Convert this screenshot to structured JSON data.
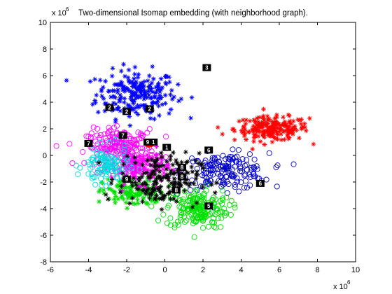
{
  "chart_data": {
    "type": "scatter",
    "title": "Two-dimensional Isomap embedding (with neighborhood graph).",
    "xlabel": "",
    "ylabel": "",
    "x_multiplier_label": "x 10",
    "x_multiplier_exponent": "6",
    "y_multiplier_label": "x 10",
    "y_multiplier_exponent": "6",
    "xlim": [
      -6,
      10
    ],
    "ylim": [
      -8,
      10
    ],
    "xticks": [
      -6,
      -4,
      -2,
      0,
      2,
      4,
      6,
      8,
      10
    ],
    "yticks": [
      -8,
      -6,
      -4,
      -2,
      0,
      2,
      4,
      6,
      8,
      10
    ],
    "grid": false,
    "series": [
      {
        "color": "#0000ff",
        "marker": "star",
        "center": [
          -1.5,
          4.6
        ],
        "spread": [
          1.4,
          1.2
        ],
        "count": 230
      },
      {
        "color": "#ff0000",
        "marker": "star",
        "center": [
          5.6,
          2.0
        ],
        "spread": [
          1.3,
          0.6
        ],
        "count": 200
      },
      {
        "color": "#0000cc",
        "marker": "circle",
        "center": [
          3.2,
          -1.2
        ],
        "spread": [
          1.5,
          0.9
        ],
        "count": 170
      },
      {
        "color": "#00e000",
        "marker": "circle",
        "center": [
          1.7,
          -4.0
        ],
        "spread": [
          1.1,
          1.0
        ],
        "count": 190
      },
      {
        "color": "#00e000",
        "marker": "star",
        "center": [
          -1.6,
          -2.8
        ],
        "spread": [
          1.1,
          0.7
        ],
        "count": 130
      },
      {
        "color": "#ff00ff",
        "marker": "circle",
        "center": [
          -2.3,
          0.6
        ],
        "spread": [
          1.2,
          0.9
        ],
        "count": 210
      },
      {
        "color": "#ff00ff",
        "marker": "star",
        "center": [
          -1.3,
          -0.9
        ],
        "spread": [
          1.0,
          0.8
        ],
        "count": 150
      },
      {
        "color": "#00dddd",
        "marker": "circle",
        "center": [
          -3.1,
          -0.8
        ],
        "spread": [
          0.8,
          0.9
        ],
        "count": 110
      },
      {
        "color": "#000000",
        "marker": "star",
        "center": [
          -0.3,
          -1.8
        ],
        "spread": [
          1.4,
          1.3
        ],
        "count": 180
      }
    ],
    "thumbnails": [
      {
        "x": 2.2,
        "y": 6.6,
        "glyph": "3"
      },
      {
        "x": -2.9,
        "y": 3.6,
        "glyph": "2"
      },
      {
        "x": -2.0,
        "y": 3.3,
        "glyph": "2"
      },
      {
        "x": -0.8,
        "y": 3.5,
        "glyph": "2"
      },
      {
        "x": -2.2,
        "y": 1.5,
        "glyph": "7"
      },
      {
        "x": -4.0,
        "y": 0.9,
        "glyph": "7"
      },
      {
        "x": -0.9,
        "y": 1.0,
        "glyph": "9"
      },
      {
        "x": -0.6,
        "y": 1.0,
        "glyph": "1"
      },
      {
        "x": 0.1,
        "y": 0.6,
        "glyph": "1"
      },
      {
        "x": 2.3,
        "y": 0.4,
        "glyph": "6"
      },
      {
        "x": -2.0,
        "y": -1.8,
        "glyph": "9"
      },
      {
        "x": 0.9,
        "y": -0.9,
        "glyph": "8"
      },
      {
        "x": 0.9,
        "y": -1.6,
        "glyph": "8"
      },
      {
        "x": 0.6,
        "y": -2.6,
        "glyph": "8"
      },
      {
        "x": 5.0,
        "y": -2.1,
        "glyph": "6"
      },
      {
        "x": 2.3,
        "y": -3.8,
        "glyph": "5"
      }
    ],
    "red_blob": {
      "x": -0.7,
      "y": 0.9
    }
  }
}
